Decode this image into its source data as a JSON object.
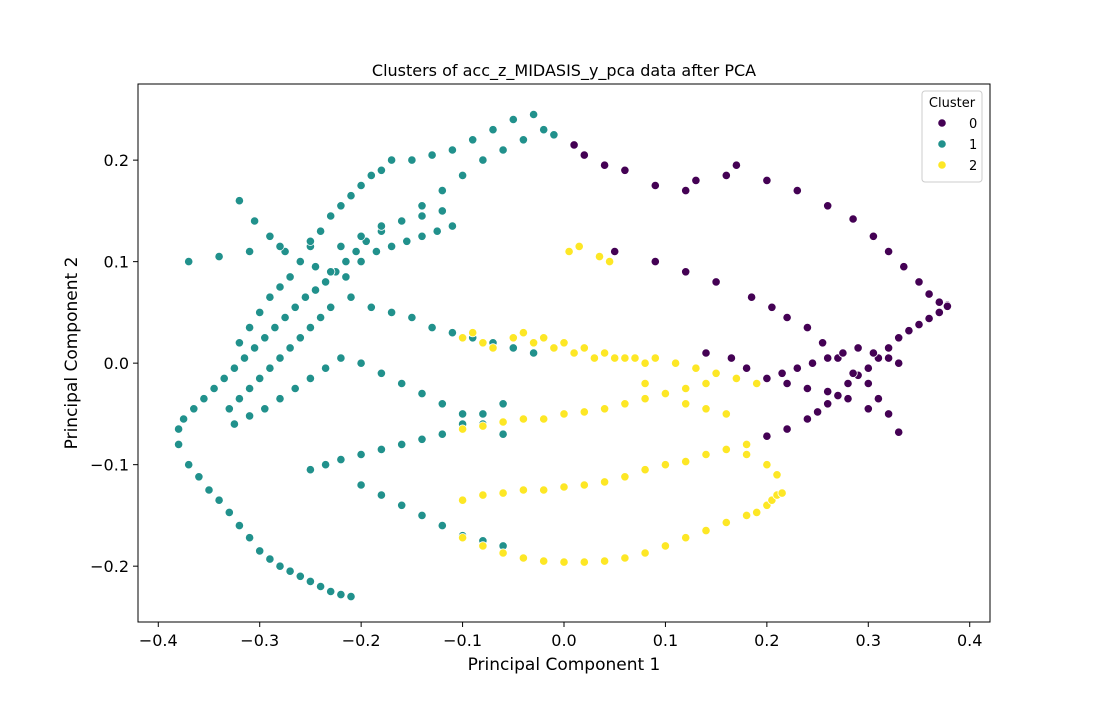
{
  "chart_data": {
    "type": "scatter",
    "title": "Clusters of acc_z_MIDASIS_y_pca data after PCA",
    "xlabel": "Principal Component 1",
    "ylabel": "Principal Component 2",
    "xlim": [
      -0.42,
      0.42
    ],
    "ylim": [
      -0.255,
      0.275
    ],
    "xticks": [
      -0.4,
      -0.3,
      -0.2,
      -0.1,
      0.0,
      0.1,
      0.2,
      0.3,
      0.4
    ],
    "xtick_labels": [
      "−0.4",
      "−0.3",
      "−0.2",
      "−0.1",
      "0.0",
      "0.1",
      "0.2",
      "0.3",
      "0.4"
    ],
    "yticks": [
      -0.2,
      -0.1,
      0.0,
      0.1,
      0.2
    ],
    "ytick_labels": [
      "−0.2",
      "−0.1",
      "0.0",
      "0.1",
      "0.2"
    ],
    "grid": false,
    "legend": {
      "title": "Cluster",
      "placement": "upper right",
      "entries": [
        {
          "label": "0",
          "color": "#440154"
        },
        {
          "label": "1",
          "color": "#21918c"
        },
        {
          "label": "2",
          "color": "#fde725"
        }
      ]
    },
    "series": [
      {
        "name": "0",
        "color": "#440154",
        "x": [
          0.01,
          0.02,
          0.04,
          0.06,
          0.09,
          0.12,
          0.13,
          0.16,
          0.17,
          0.2,
          0.23,
          0.26,
          0.285,
          0.305,
          0.32,
          0.335,
          0.35,
          0.36,
          0.37,
          0.378,
          0.2,
          0.22,
          0.24,
          0.25,
          0.26,
          0.27,
          0.28,
          0.29,
          0.3,
          0.31,
          0.32,
          0.33,
          0.34,
          0.35,
          0.36,
          0.37,
          0.378,
          0.05,
          0.09,
          0.12,
          0.15,
          0.185,
          0.205,
          0.22,
          0.24,
          0.255,
          0.27,
          0.285,
          0.3,
          0.31,
          0.32,
          0.33,
          0.14,
          0.165,
          0.18,
          0.2,
          0.22,
          0.24,
          0.26,
          0.28,
          0.3,
          0.2,
          0.215,
          0.23,
          0.245,
          0.26,
          0.275,
          0.29,
          0.305,
          0.32,
          0.33
        ],
        "y": [
          0.215,
          0.205,
          0.195,
          0.19,
          0.175,
          0.17,
          0.18,
          0.185,
          0.195,
          0.18,
          0.17,
          0.155,
          0.142,
          0.125,
          0.11,
          0.095,
          0.08,
          0.068,
          0.06,
          0.057,
          -0.072,
          -0.065,
          -0.055,
          -0.048,
          -0.04,
          -0.032,
          -0.02,
          -0.012,
          -0.005,
          0.005,
          0.015,
          0.025,
          0.032,
          0.038,
          0.044,
          0.05,
          0.056,
          0.11,
          0.1,
          0.09,
          0.08,
          0.065,
          0.055,
          0.045,
          0.035,
          0.02,
          0.005,
          -0.01,
          -0.02,
          -0.035,
          -0.05,
          -0.068,
          0.01,
          0.005,
          -0.005,
          -0.015,
          -0.02,
          -0.025,
          -0.028,
          -0.035,
          -0.045,
          -0.015,
          -0.01,
          -0.005,
          0.0,
          0.005,
          0.01,
          0.015,
          0.01,
          0.005,
          0.0
        ]
      },
      {
        "name": "1",
        "color": "#21918c",
        "x": [
          -0.38,
          -0.37,
          -0.36,
          -0.35,
          -0.34,
          -0.33,
          -0.32,
          -0.31,
          -0.3,
          -0.29,
          -0.28,
          -0.27,
          -0.26,
          -0.25,
          -0.24,
          -0.23,
          -0.22,
          -0.21,
          -0.38,
          -0.375,
          -0.365,
          -0.355,
          -0.345,
          -0.335,
          -0.325,
          -0.315,
          -0.305,
          -0.295,
          -0.285,
          -0.275,
          -0.265,
          -0.255,
          -0.245,
          -0.235,
          -0.225,
          -0.215,
          -0.205,
          -0.195,
          -0.18,
          -0.16,
          -0.14,
          -0.12,
          -0.1,
          -0.08,
          -0.06,
          -0.04,
          -0.02,
          -0.32,
          -0.31,
          -0.3,
          -0.29,
          -0.28,
          -0.27,
          -0.26,
          -0.25,
          -0.24,
          -0.23,
          -0.22,
          -0.21,
          -0.2,
          -0.19,
          -0.18,
          -0.17,
          -0.15,
          -0.13,
          -0.11,
          -0.09,
          -0.07,
          -0.05,
          -0.03,
          -0.01,
          -0.33,
          -0.32,
          -0.31,
          -0.3,
          -0.29,
          -0.28,
          -0.27,
          -0.26,
          -0.25,
          -0.24,
          -0.23,
          -0.21,
          -0.19,
          -0.17,
          -0.15,
          -0.13,
          -0.11,
          -0.09,
          -0.07,
          -0.05,
          -0.03,
          -0.325,
          -0.31,
          -0.295,
          -0.28,
          -0.265,
          -0.25,
          -0.235,
          -0.22,
          -0.2,
          -0.18,
          -0.16,
          -0.14,
          -0.12,
          -0.1,
          -0.08,
          -0.06,
          -0.32,
          -0.305,
          -0.29,
          -0.275,
          -0.26,
          -0.245,
          -0.23,
          -0.215,
          -0.2,
          -0.185,
          -0.17,
          -0.155,
          -0.14,
          -0.125,
          -0.11,
          -0.25,
          -0.235,
          -0.22,
          -0.2,
          -0.18,
          -0.16,
          -0.14,
          -0.12,
          -0.1,
          -0.08,
          -0.06,
          -0.37,
          -0.34,
          -0.31,
          -0.28,
          -0.25,
          -0.22,
          -0.2,
          -0.18,
          -0.16,
          -0.14,
          -0.12,
          -0.2,
          -0.18,
          -0.16,
          -0.14,
          -0.12,
          -0.1,
          -0.08,
          -0.06
        ],
        "y": [
          -0.08,
          -0.1,
          -0.112,
          -0.125,
          -0.135,
          -0.147,
          -0.16,
          -0.172,
          -0.185,
          -0.193,
          -0.2,
          -0.205,
          -0.21,
          -0.215,
          -0.22,
          -0.225,
          -0.228,
          -0.23,
          -0.065,
          -0.055,
          -0.045,
          -0.035,
          -0.025,
          -0.015,
          -0.005,
          0.005,
          0.015,
          0.025,
          0.035,
          0.045,
          0.055,
          0.065,
          0.072,
          0.08,
          0.09,
          0.1,
          0.11,
          0.12,
          0.13,
          0.14,
          0.155,
          0.17,
          0.185,
          0.2,
          0.21,
          0.22,
          0.23,
          0.02,
          0.035,
          0.05,
          0.065,
          0.075,
          0.085,
          0.1,
          0.115,
          0.13,
          0.145,
          0.155,
          0.165,
          0.175,
          0.185,
          0.19,
          0.2,
          0.2,
          0.205,
          0.21,
          0.22,
          0.23,
          0.24,
          0.245,
          0.225,
          -0.045,
          -0.035,
          -0.025,
          -0.015,
          -0.005,
          0.005,
          0.015,
          0.025,
          0.035,
          0.045,
          0.055,
          0.065,
          0.055,
          0.05,
          0.045,
          0.035,
          0.03,
          0.025,
          0.02,
          0.015,
          0.01,
          -0.06,
          -0.052,
          -0.045,
          -0.035,
          -0.025,
          -0.015,
          -0.005,
          0.005,
          0.0,
          -0.01,
          -0.02,
          -0.03,
          -0.04,
          -0.05,
          -0.06,
          -0.07,
          0.16,
          0.14,
          0.125,
          0.11,
          0.1,
          0.095,
          0.09,
          0.085,
          0.1,
          0.11,
          0.115,
          0.12,
          0.125,
          0.13,
          0.135,
          -0.105,
          -0.1,
          -0.095,
          -0.09,
          -0.085,
          -0.08,
          -0.075,
          -0.07,
          -0.06,
          -0.05,
          -0.04,
          0.1,
          0.105,
          0.11,
          0.115,
          0.12,
          0.115,
          0.125,
          0.135,
          0.14,
          0.145,
          0.15,
          -0.12,
          -0.13,
          -0.14,
          -0.15,
          -0.16,
          -0.17,
          -0.175,
          -0.18
        ]
      },
      {
        "name": "2",
        "color": "#fde725",
        "x": [
          -0.1,
          -0.08,
          -0.06,
          -0.04,
          -0.02,
          0.0,
          0.02,
          0.04,
          0.06,
          0.08,
          0.1,
          0.12,
          0.14,
          0.16,
          0.18,
          0.19,
          0.2,
          0.205,
          0.21,
          0.215,
          -0.1,
          -0.08,
          -0.06,
          -0.04,
          -0.02,
          0.0,
          0.02,
          0.04,
          0.06,
          0.08,
          0.1,
          0.12,
          0.14,
          0.16,
          0.18,
          0.2,
          0.21,
          -0.1,
          -0.08,
          -0.06,
          -0.04,
          -0.02,
          0.0,
          0.02,
          0.04,
          0.06,
          0.08,
          0.1,
          0.12,
          0.14,
          0.16,
          0.18,
          0.2,
          -0.05,
          -0.03,
          -0.01,
          0.01,
          0.03,
          0.05,
          0.07,
          0.09,
          0.11,
          0.13,
          0.15,
          0.17,
          0.19,
          0.0,
          0.02,
          0.04,
          0.06,
          0.08,
          0.1,
          0.12,
          0.14,
          -0.1,
          -0.09,
          -0.08,
          -0.07,
          0.005,
          0.015,
          0.035,
          0.045,
          -0.04,
          -0.02,
          0.0,
          0.02,
          0.04,
          0.06,
          0.08
        ],
        "y": [
          -0.172,
          -0.18,
          -0.187,
          -0.192,
          -0.195,
          -0.196,
          -0.196,
          -0.195,
          -0.192,
          -0.187,
          -0.18,
          -0.172,
          -0.165,
          -0.157,
          -0.15,
          -0.147,
          -0.14,
          -0.135,
          -0.13,
          -0.128,
          -0.135,
          -0.13,
          -0.128,
          -0.125,
          -0.125,
          -0.122,
          -0.12,
          -0.117,
          -0.112,
          -0.105,
          -0.1,
          -0.097,
          -0.09,
          -0.085,
          -0.09,
          -0.1,
          -0.11,
          -0.065,
          -0.062,
          -0.058,
          -0.055,
          -0.055,
          -0.05,
          -0.048,
          -0.045,
          -0.04,
          -0.035,
          -0.03,
          -0.025,
          -0.02,
          -0.05,
          -0.08,
          -0.1,
          0.025,
          0.02,
          0.015,
          0.01,
          0.005,
          0.005,
          0.005,
          0.005,
          0.0,
          -0.005,
          -0.01,
          -0.015,
          -0.02,
          0.02,
          0.015,
          0.01,
          0.005,
          -0.02,
          -0.03,
          -0.04,
          -0.045,
          0.025,
          0.03,
          0.02,
          0.015,
          0.11,
          0.115,
          0.105,
          0.1,
          0.03,
          0.025,
          0.02,
          0.015,
          0.01,
          0.005,
          0.0
        ]
      }
    ]
  }
}
